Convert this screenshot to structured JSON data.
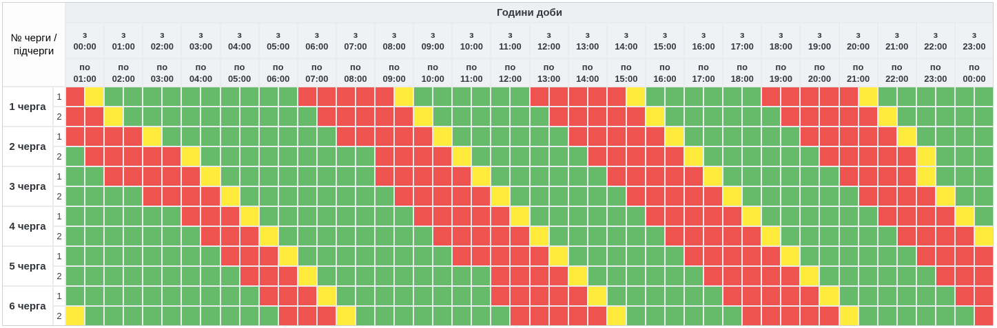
{
  "header": {
    "corner_label": "№ черги / підчерги",
    "banner": "Години доби",
    "from_prefix": "з",
    "to_prefix": "по",
    "hours": [
      {
        "from": "00:00",
        "to": "01:00"
      },
      {
        "from": "01:00",
        "to": "02:00"
      },
      {
        "from": "02:00",
        "to": "03:00"
      },
      {
        "from": "03:00",
        "to": "04:00"
      },
      {
        "from": "04:00",
        "to": "05:00"
      },
      {
        "from": "05:00",
        "to": "06:00"
      },
      {
        "from": "06:00",
        "to": "07:00"
      },
      {
        "from": "07:00",
        "to": "08:00"
      },
      {
        "from": "08:00",
        "to": "09:00"
      },
      {
        "from": "09:00",
        "to": "10:00"
      },
      {
        "from": "10:00",
        "to": "11:00"
      },
      {
        "from": "11:00",
        "to": "12:00"
      },
      {
        "from": "12:00",
        "to": "13:00"
      },
      {
        "from": "13:00",
        "to": "14:00"
      },
      {
        "from": "14:00",
        "to": "15:00"
      },
      {
        "from": "15:00",
        "to": "16:00"
      },
      {
        "from": "16:00",
        "to": "17:00"
      },
      {
        "from": "17:00",
        "to": "18:00"
      },
      {
        "from": "18:00",
        "to": "19:00"
      },
      {
        "from": "19:00",
        "to": "20:00"
      },
      {
        "from": "20:00",
        "to": "21:00"
      },
      {
        "from": "21:00",
        "to": "22:00"
      },
      {
        "from": "22:00",
        "to": "23:00"
      },
      {
        "from": "23:00",
        "to": "00:00"
      }
    ]
  },
  "legend_colors": {
    "R": "#ef5350",
    "Y": "#ffeb3b",
    "G": "#66bb6a"
  },
  "cells_per_row": 48,
  "queues": [
    {
      "label": "1 черга",
      "subqueues": [
        {
          "label": "1",
          "pattern": "RYGGGGGGGGGGRRRRRYGGGGGGRRRRRYGGGGGGRRRRRYGGGGGG"
        },
        {
          "label": "2",
          "pattern": "RRYGGGGGGGGGGRRRRRYGGGGGGRRRRRYGGGGGGRRRRRYGGGGG"
        }
      ]
    },
    {
      "label": "2 черга",
      "subqueues": [
        {
          "label": "1",
          "pattern": "RRRRYGGGGGGGGGRRRRRYGGGGGGRRRRRYGGGGGGRRRRRYGGGG"
        },
        {
          "label": "2",
          "pattern": "GRRRRRYGGGGGGGGGRRRRYGGGGGGRRRRRYGGGGGGRRRRRYGGG"
        }
      ]
    },
    {
      "label": "3 черга",
      "subqueues": [
        {
          "label": "1",
          "pattern": "GGRRRRRYGGGGGGGGRRRRRYGGGGGGRRRRRYGGGGGGRRRRYGGG"
        },
        {
          "label": "2",
          "pattern": "GGGGRRRRYGGGGGGGGRRRRRYGGGGGGRRRRRYGGGGGGRRRRYGG"
        }
      ]
    },
    {
      "label": "4 черга",
      "subqueues": [
        {
          "label": "1",
          "pattern": "GGGGGGRRRYGGGGGGGGRRRRRYGGGGGGRRRRRYGGGGGGRRRRYG"
        },
        {
          "label": "2",
          "pattern": "GGGGGGGRRRYGGGGGGGGRRRRRYGGGGGGRRRRRYGGGGGGRRRRY"
        }
      ]
    },
    {
      "label": "5 черга",
      "subqueues": [
        {
          "label": "1",
          "pattern": "GGGGGGGGRRRYGGGGGGGGRRRRRYGGGGGGRRRRRYGGGGGGRRRR"
        },
        {
          "label": "2",
          "pattern": "GGGGGGGGGRRRYGGGGGGGGGRRRRYGGGGGGRRRRRYGGGGGGRRR"
        }
      ]
    },
    {
      "label": "6 черга",
      "subqueues": [
        {
          "label": "1",
          "pattern": "GGGGGGGGGGRRRYGGGGGGGGRRRRRYGGGGGGRRRRRYGGGGGGRR"
        },
        {
          "label": "2",
          "pattern": "YGGGGGGGGGGRRRYGGGGGGGGRRRRRYGGGGGGRRRRRYGGGGGGR"
        }
      ]
    }
  ]
}
